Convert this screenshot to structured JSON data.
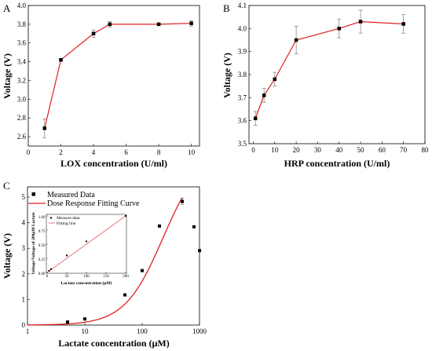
{
  "chart_data": [
    {
      "panel": "A",
      "type": "line",
      "xlabel": "LOX concentration (U/ml)",
      "ylabel": "Voltage (V)",
      "xlim": [
        0,
        10.5
      ],
      "ylim": [
        2.5,
        4.0
      ],
      "xticks": [
        "0",
        "2",
        "4",
        "6",
        "8",
        "10"
      ],
      "yticks": [
        "2.6",
        "2.8",
        "3.0",
        "3.2",
        "3.4",
        "3.6",
        "3.8",
        "4.0"
      ],
      "x": [
        1,
        2,
        4,
        5,
        8,
        10
      ],
      "y": [
        2.69,
        3.42,
        3.7,
        3.8,
        3.8,
        3.81
      ],
      "err": [
        0.1,
        0.01,
        0.04,
        0.03,
        0.01,
        0.03
      ],
      "line_color": "#e02020",
      "marker": "square"
    },
    {
      "panel": "B",
      "type": "line",
      "xlabel": "HRP concentration (U/ml)",
      "ylabel": "Voltage (V)",
      "xlim": [
        -2,
        80
      ],
      "ylim": [
        3.5,
        4.1
      ],
      "xticks": [
        "0",
        "10",
        "20",
        "30",
        "40",
        "50",
        "60",
        "70",
        "80"
      ],
      "yticks": [
        "3.5",
        "3.6",
        "3.7",
        "3.8",
        "3.9",
        "4.0",
        "4.1"
      ],
      "x": [
        1,
        5,
        10,
        20,
        40,
        50,
        70
      ],
      "y": [
        3.61,
        3.71,
        3.78,
        3.95,
        4.0,
        4.03,
        4.02
      ],
      "err": [
        0.03,
        0.03,
        0.03,
        0.06,
        0.04,
        0.05,
        0.04
      ],
      "line_color": "#e02020",
      "marker": "square"
    },
    {
      "panel": "C",
      "type": "scatter",
      "xlabel": "Lactate concentration (μM)",
      "ylabel": "Voltage (V)",
      "xscale": "log",
      "xlim": [
        1,
        1000
      ],
      "ylim": [
        0,
        5.4
      ],
      "xticks": [
        "1",
        "10",
        "100",
        "1000"
      ],
      "yticks": [
        "0",
        "1",
        "2",
        "3",
        "4",
        "5"
      ],
      "legend": [
        "Measured Data",
        "Dose Response Fitting Curve"
      ],
      "legend_position": "top-left",
      "series": [
        {
          "name": "Measured Data",
          "x": [
            5,
            10,
            50,
            100,
            200,
            500,
            800,
            1000
          ],
          "y": [
            0.12,
            0.24,
            1.18,
            2.13,
            3.87,
            4.83,
            3.84,
            2.91
          ],
          "err": [
            0.02,
            0.02,
            0.03,
            0.03,
            0.03,
            0.12,
            0.03,
            0.03
          ]
        },
        {
          "name": "Dose Response Fitting Curve",
          "model": "logistic",
          "A1": 0.0,
          "A2": 6.8,
          "x0": 230,
          "p": 1.3,
          "x_range": [
            1,
            500
          ],
          "color": "#e02020"
        }
      ],
      "inset": {
        "type": "scatter",
        "xlabel": "Lactate concentration (μM)",
        "ylabel": "Voltage/Voltage of 200μM Lactate",
        "xlim": [
          0,
          200
        ],
        "ylim": [
          0,
          1.0
        ],
        "xticks": [
          "0",
          "50",
          "100",
          "150",
          "200"
        ],
        "yticks": [
          "0.00",
          "0.25",
          "0.50",
          "0.75",
          "1.00"
        ],
        "legend": [
          "Measure data",
          "Fitting line"
        ],
        "x": [
          5,
          10,
          50,
          100,
          200
        ],
        "y": [
          0.03,
          0.06,
          0.3,
          0.55,
          1.0
        ],
        "fit": [
          [
            0,
            0.0
          ],
          [
            200,
            1.0
          ]
        ]
      }
    }
  ]
}
